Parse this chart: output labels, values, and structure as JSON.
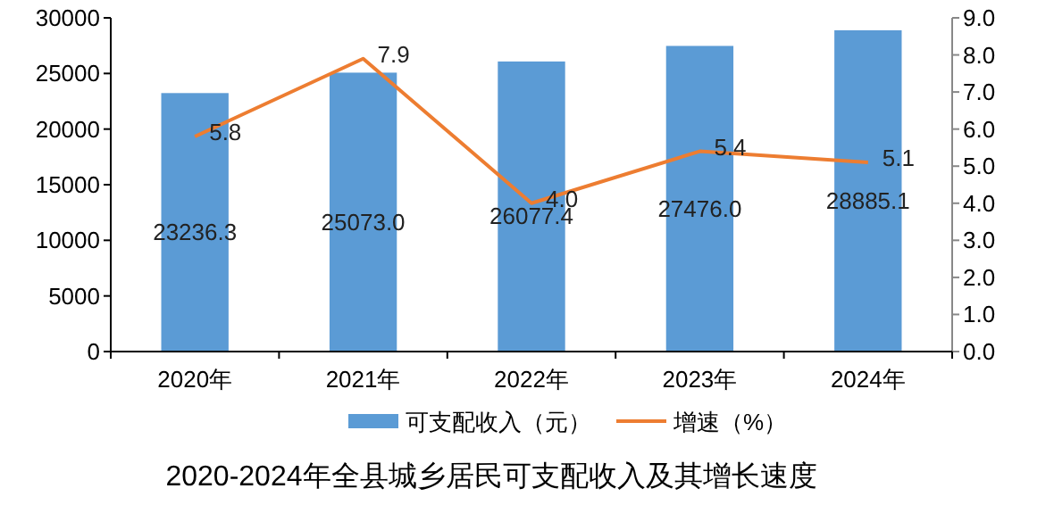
{
  "chart_data": {
    "type": "bar",
    "title": "2020-2024年全县城乡居民可支配收入及其增长速度",
    "categories": [
      "2020年",
      "2021年",
      "2022年",
      "2023年",
      "2024年"
    ],
    "series": [
      {
        "name": "可支配收入（元）",
        "color": "#5b9bd5",
        "values": [
          23236.3,
          25073.0,
          26077.4,
          27476.0,
          28885.1
        ]
      },
      {
        "name": "增速（%）",
        "type": "line",
        "axis": "y2",
        "color": "#ed7d31",
        "values": [
          5.8,
          7.9,
          4.0,
          5.4,
          5.1
        ]
      }
    ],
    "ylim": [
      0,
      30000
    ],
    "yticks": [
      0,
      5000,
      10000,
      15000,
      20000,
      25000,
      30000
    ],
    "y2lim": [
      0,
      9
    ],
    "y2ticks": [
      {
        "value": 0,
        "label": "0.0"
      },
      {
        "value": 1,
        "label": "1.0"
      },
      {
        "value": 2,
        "label": "2.0"
      },
      {
        "value": 3,
        "label": "3.0"
      },
      {
        "value": 4,
        "label": "4.0"
      },
      {
        "value": 5,
        "label": "5.0"
      },
      {
        "value": 6,
        "label": "6.0"
      },
      {
        "value": 7,
        "label": "7.0"
      },
      {
        "value": 8,
        "label": "8.0"
      },
      {
        "value": 9,
        "label": "9.0"
      }
    ],
    "value_labels": [
      [
        "23236.3",
        "25073.0",
        "26077.4",
        "27476.0",
        "28885.1"
      ],
      [
        "5.8",
        "7.9",
        "4.0",
        "5.4",
        "5.1"
      ]
    ],
    "grid": false,
    "legend": "bottom"
  }
}
